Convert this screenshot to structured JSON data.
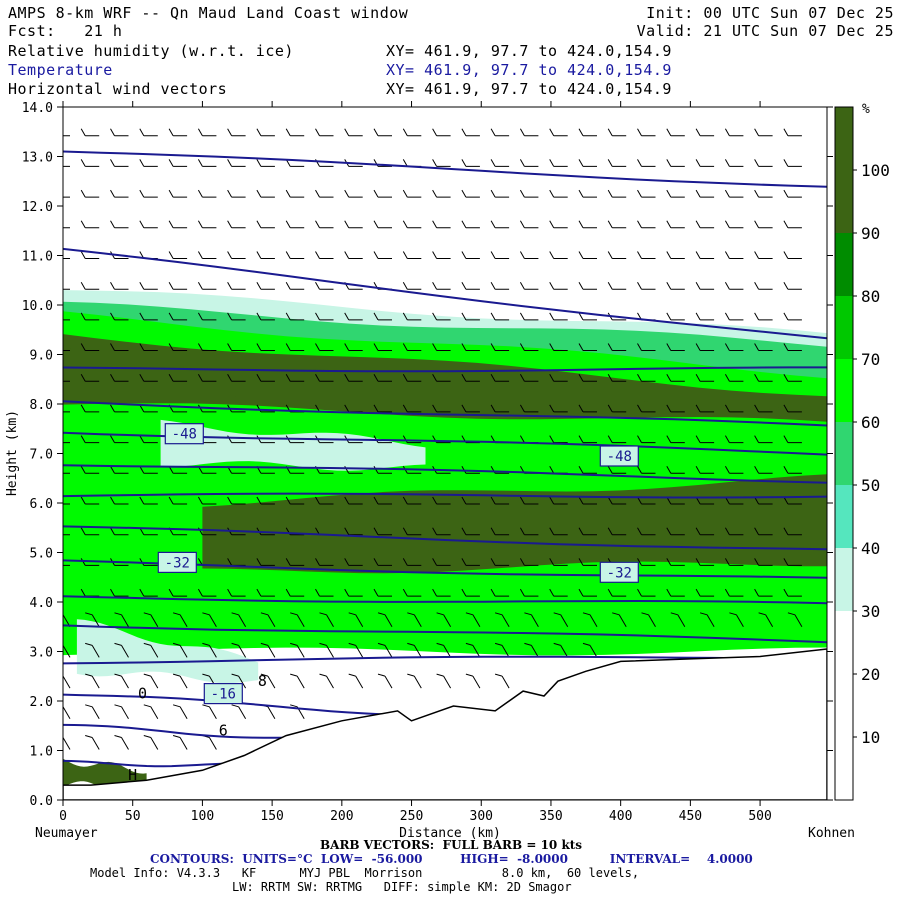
{
  "header": {
    "title": "AMPS 8-km WRF -- Qn Maud Land Coast window",
    "init": "Init: 00 UTC Sun 07 Dec 25",
    "fcst": "Fcst:   21 h",
    "valid": "Valid: 21 UTC Sun 07 Dec 25",
    "fields": [
      {
        "name": "Relative humidity (w.r.t. ice)",
        "xy": "XY= 461.9, 97.7 to 424.0,154.9"
      },
      {
        "name": "Temperature",
        "xy": "XY= 461.9, 97.7 to 424.0,154.9"
      },
      {
        "name": "Horizontal wind vectors",
        "xy": "XY= 461.9, 97.7 to 424.0,154.9"
      }
    ]
  },
  "left_station": "Neumayer",
  "right_station": "Kohnen",
  "footer": {
    "barb": "BARB VECTORS:  FULL BARB = 10 kts",
    "contours": "CONTOURS:  UNITS=°C  LOW=  -56.000         HIGH=  -8.0000          INTERVAL=    4.0000",
    "model1": "Model Info: V4.3.3   KF      MYJ PBL  Morrison           8.0 km,  60 levels,",
    "model2": "LW: RRTM SW: RRTMG   DIFF: simple KM: 2D Smagor"
  },
  "colors": {
    "rh_bands": [
      "#ffffff",
      "#c8f5e6",
      "#55e6be",
      "#30d670",
      "#00fa00",
      "#00c800",
      "#008c00",
      "#3c6414"
    ],
    "contour": "#1a1a90"
  },
  "chart_data": {
    "type": "heatmap",
    "xlabel": "Distance (km)",
    "ylabel": "Height (km)",
    "xlim": [
      0,
      548
    ],
    "ylim": [
      0,
      14
    ],
    "x_ticks": [
      0,
      50,
      100,
      150,
      200,
      250,
      300,
      350,
      400,
      450,
      500
    ],
    "y_ticks": [
      "0.0",
      "1.0",
      "2.0",
      "3.0",
      "4.0",
      "5.0",
      "6.0",
      "7.0",
      "8.0",
      "9.0",
      "10.0",
      "11.0",
      "12.0",
      "13.0",
      "14.0"
    ],
    "colorbar": {
      "unit": "%",
      "levels": [
        10,
        20,
        30,
        40,
        50,
        60,
        70,
        80,
        90,
        100
      ],
      "range": [
        0,
        110
      ]
    },
    "terrain_km": {
      "x": [
        0,
        20,
        60,
        100,
        130,
        160,
        200,
        240,
        250,
        280,
        310,
        330,
        345,
        355,
        375,
        400,
        450,
        500,
        548
      ],
      "y": [
        0.3,
        0.3,
        0.4,
        0.6,
        0.9,
        1.3,
        1.6,
        1.8,
        1.6,
        1.9,
        1.8,
        2.2,
        2.1,
        2.4,
        2.6,
        2.8,
        2.85,
        2.9,
        3.05
      ]
    },
    "rh_layers": [
      {
        "rh": 30,
        "x": [
          0,
          548
        ],
        "top_km": [
          10.3,
          9.4
        ],
        "bottom_km": [
          3.6,
          3.2
        ]
      },
      {
        "rh": 50,
        "x": [
          0,
          548
        ],
        "top_km": [
          10.0,
          9.2
        ],
        "bottom_km": [
          3.4,
          3.1
        ]
      },
      {
        "rh": 65,
        "x": [
          0,
          548
        ],
        "top_km": [
          9.8,
          8.6
        ],
        "bottom_km": [
          3.0,
          3.0
        ]
      },
      {
        "rh": 95,
        "x": [
          0,
          548
        ],
        "top_km": [
          9.4,
          8.2
        ],
        "bottom_km": [
          8.0,
          7.6
        ]
      },
      {
        "rh": 100,
        "x": [
          0,
          548
        ],
        "top_km": [
          9.2,
          7.8
        ],
        "bottom_km": [
          8.2,
          7.9
        ]
      },
      {
        "rh": 90,
        "x": [
          100,
          548
        ],
        "top_km": [
          6.0,
          6.5
        ],
        "bottom_km": [
          4.6,
          4.8
        ]
      },
      {
        "rh": 100,
        "x": [
          150,
          520
        ],
        "top_km": [
          5.8,
          6.2
        ],
        "bottom_km": [
          5.0,
          5.3
        ]
      },
      {
        "rh": 35,
        "x": [
          10,
          140
        ],
        "top_km": [
          3.6,
          2.8
        ],
        "bottom_km": [
          2.6,
          2.4
        ]
      },
      {
        "rh": 35,
        "x": [
          70,
          260
        ],
        "top_km": [
          7.6,
          7.2
        ],
        "bottom_km": [
          6.8,
          6.7
        ]
      },
      {
        "rh": 100,
        "x": [
          0,
          60
        ],
        "top_km": [
          0.8,
          0.6
        ],
        "bottom_km": [
          0.3,
          0.3
        ]
      }
    ],
    "temperature_contours": [
      {
        "x": [
          0,
          548
        ],
        "y": [
          13.1,
          12.4
        ]
      },
      {
        "x": [
          0,
          548
        ],
        "y": [
          11.1,
          9.3
        ]
      },
      {
        "x": [
          0,
          548
        ],
        "y": [
          8.7,
          8.7
        ]
      },
      {
        "x": [
          0,
          548
        ],
        "y": [
          8.05,
          7.55
        ]
      },
      {
        "x": [
          0,
          548
        ],
        "y": [
          7.45,
          7.0
        ]
      },
      {
        "x": [
          0,
          548
        ],
        "y": [
          6.8,
          6.45
        ]
      },
      {
        "x": [
          0,
          548
        ],
        "y": [
          6.15,
          6.15
        ]
      },
      {
        "x": [
          0,
          548
        ],
        "y": [
          5.5,
          5.05
        ]
      },
      {
        "x": [
          0,
          548
        ],
        "y": [
          4.8,
          4.45
        ]
      },
      {
        "x": [
          0,
          548
        ],
        "y": [
          4.1,
          3.95
        ]
      },
      {
        "x": [
          0,
          548
        ],
        "y": [
          3.55,
          3.2
        ]
      },
      {
        "x": [
          0,
          548
        ],
        "y": [
          2.8,
          2.9
        ]
      },
      {
        "x": [
          0,
          240
        ],
        "y": [
          2.15,
          1.75
        ]
      },
      {
        "x": [
          0,
          160
        ],
        "y": [
          1.5,
          1.25
        ]
      },
      {
        "x": [
          0,
          120
        ],
        "y": [
          0.75,
          0.7
        ]
      }
    ],
    "contour_labels": [
      {
        "text": "-48",
        "x": 87,
        "y": 7.4
      },
      {
        "text": "-48",
        "x": 399,
        "y": 6.95
      },
      {
        "text": "-32",
        "x": 82,
        "y": 4.8
      },
      {
        "text": "-32",
        "x": 399,
        "y": 4.6
      },
      {
        "text": "-16",
        "x": 115,
        "y": 2.15
      }
    ],
    "annotations": [
      {
        "text": "8",
        "x": 143,
        "y": 2.3
      },
      {
        "text": "0",
        "x": 57,
        "y": 2.05
      },
      {
        "text": "6",
        "x": 115,
        "y": 1.3
      },
      {
        "text": "H",
        "x": 50,
        "y": 0.4
      }
    ]
  }
}
